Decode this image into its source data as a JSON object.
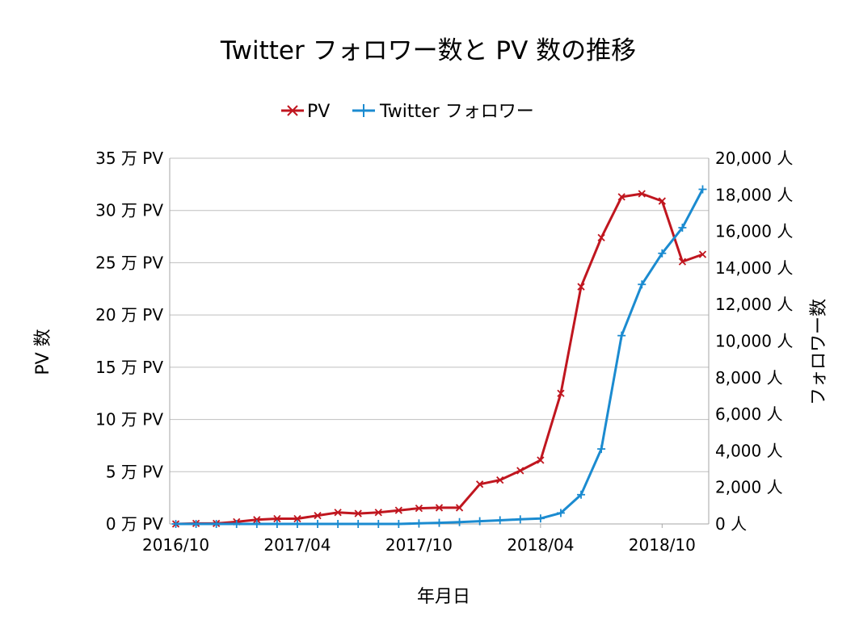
{
  "chart_data": {
    "type": "line",
    "title": "Twitter フォロワー数と PV 数の推移",
    "xlabel": "年月日",
    "ylabel_left": "PV 数",
    "ylabel_right": "フォロワー数",
    "x": [
      "2016/10",
      "2016/11",
      "2016/12",
      "2017/01",
      "2017/02",
      "2017/03",
      "2017/04",
      "2017/05",
      "2017/06",
      "2017/07",
      "2017/08",
      "2017/09",
      "2017/10",
      "2017/11",
      "2017/12",
      "2018/01",
      "2018/02",
      "2018/03",
      "2018/04",
      "2018/05",
      "2018/06",
      "2018/07",
      "2018/08",
      "2018/09",
      "2018/10",
      "2018/11",
      "2018/12"
    ],
    "x_tick_labels": [
      "2016/10",
      "2017/04",
      "2017/10",
      "2018/04",
      "2018/10"
    ],
    "left_ticks": [
      "0 万 PV",
      "5 万 PV",
      "10 万 PV",
      "15 万 PV",
      "20 万 PV",
      "25 万 PV",
      "30 万 PV",
      "35 万 PV"
    ],
    "right_ticks": [
      "0 人",
      "2,000 人",
      "4,000 人",
      "6,000 人",
      "8,000 人",
      "10,000 人",
      "12,000 人",
      "14,000 人",
      "16,000 人",
      "18,000 人",
      "20,000 人"
    ],
    "ylim_left": [
      0,
      350000
    ],
    "ylim_right": [
      0,
      20000
    ],
    "grid": true,
    "legend_position": "top",
    "series": [
      {
        "name": "PV",
        "axis": "left",
        "color": "#c0161f",
        "marker": "x",
        "values": [
          0,
          500,
          500,
          2000,
          4000,
          5000,
          5000,
          8000,
          11000,
          10000,
          11000,
          13000,
          15000,
          15500,
          15500,
          38000,
          42000,
          51000,
          61000,
          125000,
          227000,
          274000,
          313000,
          316000,
          309000,
          251000,
          258000
        ]
      },
      {
        "name": "Twitter フォロワー",
        "axis": "right",
        "color": "#1b8bd0",
        "marker": "+",
        "values": [
          0,
          0,
          0,
          0,
          0,
          0,
          0,
          0,
          0,
          0,
          0,
          0,
          30,
          60,
          100,
          150,
          200,
          250,
          300,
          600,
          1600,
          4100,
          10300,
          13100,
          14800,
          16200,
          18300
        ]
      }
    ]
  }
}
